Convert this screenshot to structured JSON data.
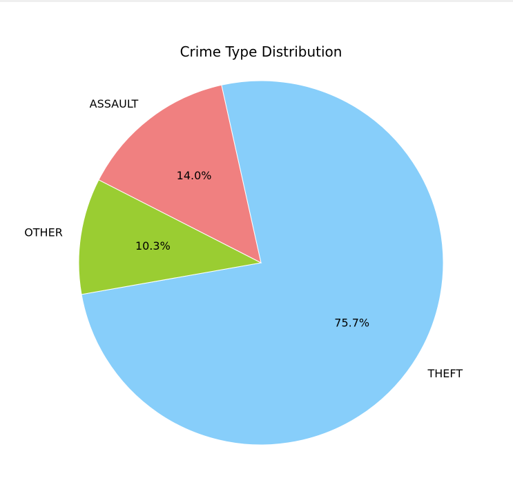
{
  "chart_data": {
    "type": "pie",
    "title": "Crime Type Distribution",
    "categories": [
      "THEFT",
      "ASSAULT",
      "OTHER"
    ],
    "values": [
      75.7,
      14.0,
      10.3
    ],
    "percent_labels": [
      "75.7%",
      "14.0%",
      "10.3%"
    ],
    "colors": [
      "#87CEFA",
      "#F08080",
      "#9ACD32"
    ]
  }
}
